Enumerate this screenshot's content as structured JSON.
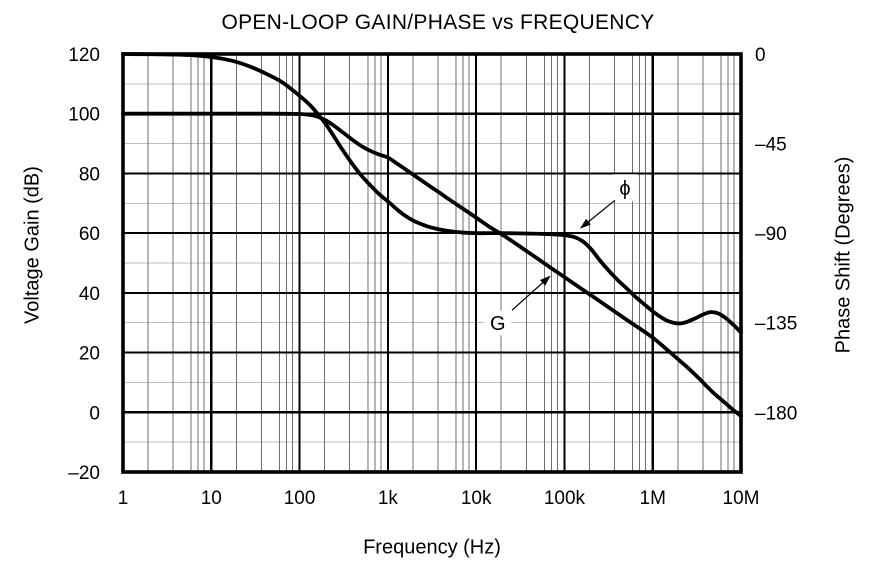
{
  "chart": {
    "title": "OPEN-LOOP GAIN/PHASE vs FREQUENCY",
    "x_axis": {
      "label": "Frequency (Hz)",
      "tick_labels": [
        "1",
        "10",
        "100",
        "1k",
        "10k",
        "100k",
        "1M",
        "10M"
      ]
    },
    "y_left": {
      "label": "Voltage Gain (dB)",
      "tick_labels": [
        "120",
        "100",
        "80",
        "60",
        "40",
        "20",
        "0",
        "–20"
      ],
      "min": -20,
      "max": 120
    },
    "y_right": {
      "label": "Phase Shift (Degrees)",
      "tick_labels": [
        "0",
        "–45",
        "–90",
        "–135",
        "–180"
      ],
      "tick_gain_equiv": [
        120,
        90,
        60,
        30,
        0
      ]
    },
    "colors": {
      "ink": "#000000",
      "minor_v": "#6f6f6f",
      "minor_h": "#bdbdbd",
      "background": "#ffffff"
    }
  },
  "chart_data": {
    "type": "line",
    "title": "OPEN-LOOP GAIN/PHASE vs FREQUENCY",
    "xlabel": "Frequency (Hz)",
    "x_scale": "log",
    "xlim": [
      1,
      10000000
    ],
    "ylabel_left": "Voltage Gain (dB)",
    "ylim_left": [
      -20,
      120
    ],
    "ylabel_right": "Phase Shift (Degrees)",
    "ylim_right": [
      -180,
      0
    ],
    "grid": {
      "major_db_step": 20,
      "minor_db_lines": [
        110,
        90,
        70,
        50,
        30,
        10,
        -10
      ],
      "minor_log_fractions": [
        0.284,
        0.568,
        0.773,
        0.852,
        0.92
      ],
      "internal_major_db": [
        100,
        80,
        60,
        40,
        20,
        0
      ],
      "internal_major_decades": [
        1,
        2,
        3,
        4,
        5,
        6
      ]
    },
    "series": [
      {
        "name": "G",
        "label": "G",
        "axis": "left",
        "unit": "dB",
        "points": [
          [
            1,
            100
          ],
          [
            10,
            100
          ],
          [
            50,
            100
          ],
          [
            100,
            99.9
          ],
          [
            130,
            99.6
          ],
          [
            160,
            99
          ],
          [
            200,
            97.7
          ],
          [
            250,
            95.8
          ],
          [
            320,
            93.4
          ],
          [
            400,
            91.2
          ],
          [
            500,
            89.2
          ],
          [
            650,
            87.4
          ],
          [
            800,
            86.3
          ],
          [
            1000,
            85.3
          ],
          [
            1300,
            83.1
          ],
          [
            1600,
            81.3
          ],
          [
            2000,
            79.3
          ],
          [
            3000,
            75.7
          ],
          [
            4000,
            73.2
          ],
          [
            5000,
            71.2
          ],
          [
            7000,
            68.3
          ],
          [
            10000,
            65.2
          ],
          [
            14000,
            62.2
          ],
          [
            20000,
            59.4
          ],
          [
            30000,
            55.9
          ],
          [
            50000,
            51.4
          ],
          [
            70000,
            48.4
          ],
          [
            100000,
            45.3
          ],
          [
            140000,
            42.3
          ],
          [
            200000,
            39.2
          ],
          [
            300000,
            35.6
          ],
          [
            500000,
            31.1
          ],
          [
            700000,
            28.2
          ],
          [
            1000000,
            25
          ],
          [
            1300000,
            22.2
          ],
          [
            1600000,
            19.9
          ],
          [
            2000000,
            17.4
          ],
          [
            2500000,
            14.9
          ],
          [
            3000000,
            12.7
          ],
          [
            3500000,
            10.8
          ],
          [
            4000000,
            9
          ],
          [
            5000000,
            6.2
          ],
          [
            6000000,
            4.2
          ],
          [
            7000000,
            2.5
          ],
          [
            8000000,
            1
          ],
          [
            9000000,
            -0.2
          ],
          [
            10000000,
            -1.3
          ]
        ]
      },
      {
        "name": "phi",
        "label": "ϕ",
        "axis": "right",
        "unit": "degrees",
        "points": [
          [
            1,
            0
          ],
          [
            4,
            -0.3
          ],
          [
            7,
            -0.8
          ],
          [
            10,
            -1.5
          ],
          [
            15,
            -2.8
          ],
          [
            20,
            -4.2
          ],
          [
            30,
            -7
          ],
          [
            40,
            -9.5
          ],
          [
            60,
            -13.5
          ],
          [
            80,
            -17.5
          ],
          [
            100,
            -21
          ],
          [
            130,
            -25.5
          ],
          [
            160,
            -30
          ],
          [
            200,
            -35.5
          ],
          [
            250,
            -42
          ],
          [
            300,
            -47.5
          ],
          [
            400,
            -55.5
          ],
          [
            500,
            -61
          ],
          [
            650,
            -66.5
          ],
          [
            800,
            -70.5
          ],
          [
            1000,
            -74
          ],
          [
            1300,
            -78.5
          ],
          [
            1600,
            -81.5
          ],
          [
            2000,
            -84
          ],
          [
            2500,
            -85.8
          ],
          [
            3000,
            -87
          ],
          [
            4000,
            -88.3
          ],
          [
            5000,
            -89
          ],
          [
            7000,
            -89.7
          ],
          [
            10000,
            -90
          ],
          [
            20000,
            -90
          ],
          [
            50000,
            -90.3
          ],
          [
            80000,
            -90.7
          ],
          [
            100000,
            -91
          ],
          [
            130000,
            -92
          ],
          [
            160000,
            -94
          ],
          [
            200000,
            -98
          ],
          [
            250000,
            -103.5
          ],
          [
            320000,
            -109
          ],
          [
            400000,
            -113.5
          ],
          [
            500000,
            -117.5
          ],
          [
            650000,
            -122.3
          ],
          [
            800000,
            -125.7
          ],
          [
            1000000,
            -129.3
          ],
          [
            1250000,
            -132.3
          ],
          [
            1500000,
            -134.2
          ],
          [
            1800000,
            -135.2
          ],
          [
            2100000,
            -135.3
          ],
          [
            2500000,
            -134.4
          ],
          [
            3000000,
            -132.9
          ],
          [
            3500000,
            -131.4
          ],
          [
            4000000,
            -130.3
          ],
          [
            4500000,
            -129.7
          ],
          [
            5000000,
            -129.8
          ],
          [
            5500000,
            -130.3
          ],
          [
            6000000,
            -131.2
          ],
          [
            7000000,
            -133.3
          ],
          [
            8000000,
            -135.6
          ],
          [
            9000000,
            -137.8
          ],
          [
            10000000,
            -140
          ]
        ]
      }
    ],
    "annotations": [
      {
        "series": "phi",
        "text": "ϕ",
        "label_at": {
          "freq": 485000,
          "db": 75.2
        },
        "arrow_from": {
          "freq": 373000,
          "db": 71
        },
        "arrow_to": {
          "freq": 150000,
          "db": 61.5
        },
        "knockout": {
          "w": 24,
          "h": 27
        }
      },
      {
        "series": "G",
        "text": "G",
        "label_at": {
          "freq": 17600,
          "db": 29.9
        },
        "arrow_from": {
          "freq": 25500,
          "db": 34.2
        },
        "arrow_to": {
          "freq": 70000,
          "db": 45.8
        },
        "knockout": {
          "w": 27,
          "h": 25
        }
      }
    ],
    "legend_position": "none"
  }
}
